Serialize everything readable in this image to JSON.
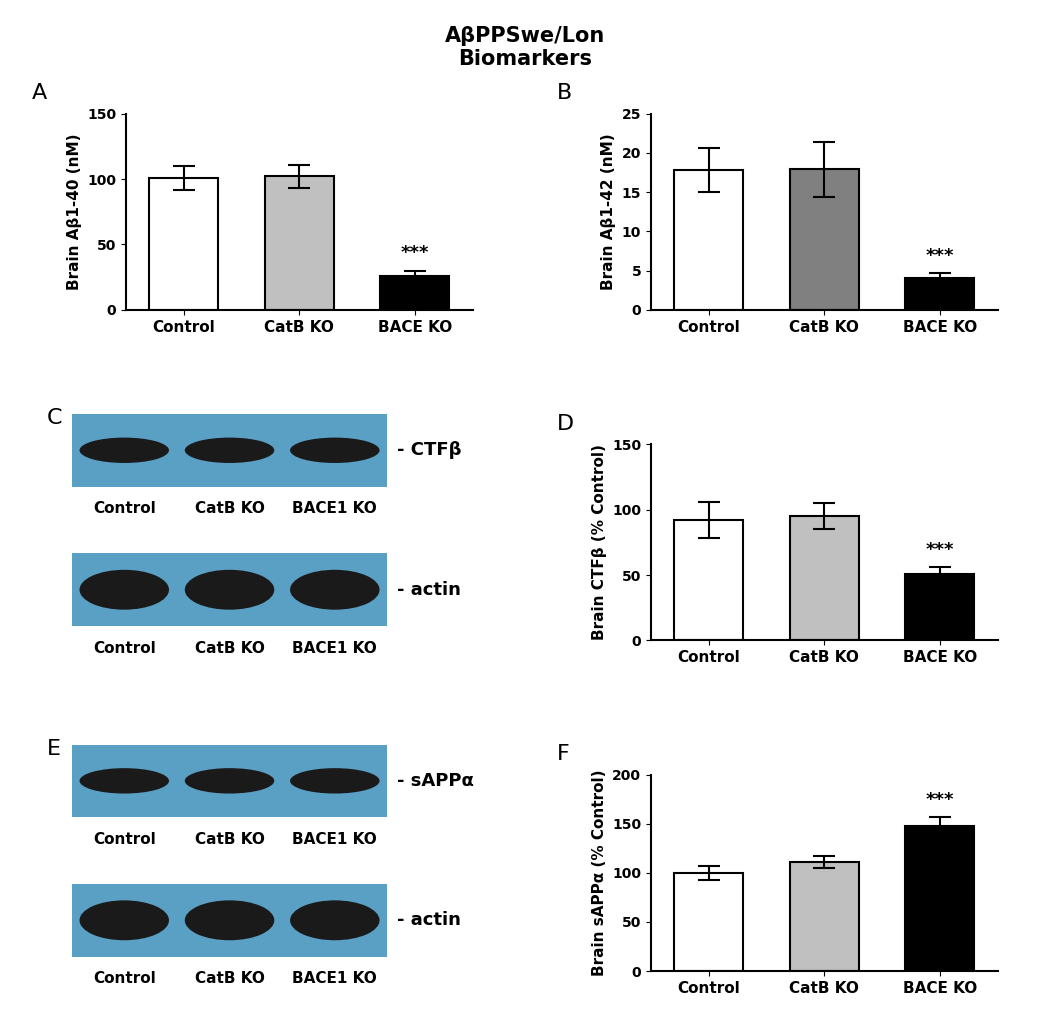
{
  "title": "AβPPSwe/Lon\nBiomarkers",
  "chart_data": [
    {
      "type": "bar",
      "panel": "A",
      "categories": [
        "Control",
        "CatB KO",
        "BACE KO"
      ],
      "values": [
        101,
        102,
        26
      ],
      "errors": [
        9,
        9,
        4
      ],
      "colors": [
        "#ffffff",
        "#c0c0c0",
        "#000000"
      ],
      "y_label": "Brain Aβ1-40 (nM)",
      "ylim": [
        0,
        150
      ],
      "yticks": [
        0,
        50,
        100,
        150
      ],
      "annotations": [
        {
          "category": "BACE KO",
          "text": "***"
        }
      ]
    },
    {
      "type": "bar",
      "panel": "B",
      "categories": [
        "Control",
        "CatB KO",
        "BACE KO"
      ],
      "values": [
        17.8,
        17.9,
        4.0
      ],
      "errors": [
        2.8,
        3.5,
        0.7
      ],
      "colors": [
        "#ffffff",
        "#808080",
        "#000000"
      ],
      "y_label": "Brain Aβ1-42 (nM)",
      "ylim": [
        0,
        25
      ],
      "yticks": [
        0,
        5,
        10,
        15,
        20,
        25
      ],
      "annotations": [
        {
          "category": "BACE KO",
          "text": "***"
        }
      ]
    },
    {
      "type": "bar",
      "panel": "D",
      "categories": [
        "Control",
        "CatB KO",
        "BACE KO"
      ],
      "values": [
        92,
        95,
        51
      ],
      "errors": [
        14,
        10,
        5
      ],
      "colors": [
        "#ffffff",
        "#c0c0c0",
        "#000000"
      ],
      "y_label": "Brain CTFβ (% Control)",
      "ylim": [
        0,
        150
      ],
      "yticks": [
        0,
        50,
        100,
        150
      ],
      "annotations": [
        {
          "category": "BACE KO",
          "text": "***"
        }
      ]
    },
    {
      "type": "bar",
      "panel": "F",
      "categories": [
        "Control",
        "CatB KO",
        "BACE KO"
      ],
      "values": [
        100,
        111,
        148
      ],
      "errors": [
        7,
        6,
        9
      ],
      "colors": [
        "#ffffff",
        "#c0c0c0",
        "#000000"
      ],
      "y_label": "Brain sAPPα (% Control)",
      "ylim": [
        0,
        200
      ],
      "yticks": [
        0,
        50,
        100,
        150,
        200
      ],
      "annotations": [
        {
          "category": "BACE KO",
          "text": "***"
        }
      ]
    }
  ],
  "blots": [
    {
      "panel": "C",
      "lanes": [
        "Control",
        "CatB KO",
        "BACE1 KO"
      ],
      "bands": [
        "- CTFβ",
        "- actin"
      ]
    },
    {
      "panel": "E",
      "lanes": [
        "Control",
        "CatB KO",
        "BACE1 KO"
      ],
      "bands": [
        "- sAPPα",
        "- actin"
      ]
    }
  ]
}
